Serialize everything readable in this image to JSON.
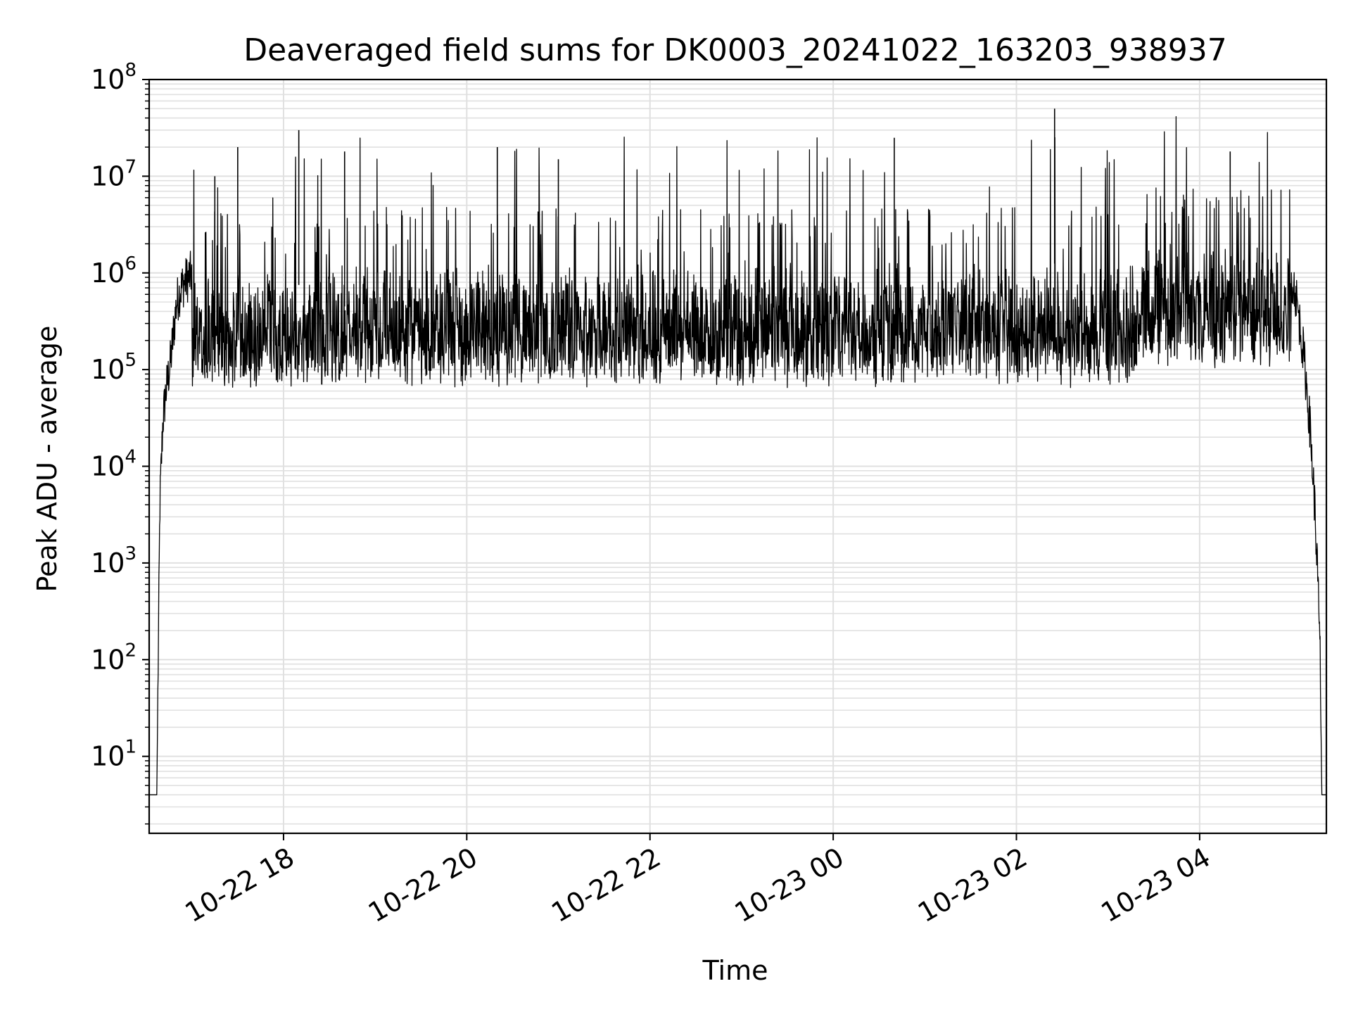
{
  "chart_data": {
    "type": "line",
    "title": "Deaveraged field sums for DK0003_20241022_163203_938937",
    "xlabel": "Time",
    "ylabel": "Peak ADU - average",
    "yscale": "log",
    "ylim": [
      1.6,
      100000000
    ],
    "xlim": [
      "2024-10-22 16:32",
      "2024-10-23 05:23"
    ],
    "grid": true,
    "legend": "none",
    "line_color": "#000000",
    "grid_color": "#e0e0e0",
    "x_ticks": [
      {
        "value": "2024-10-22 18:00",
        "label": "10-22 18"
      },
      {
        "value": "2024-10-22 20:00",
        "label": "10-22 20"
      },
      {
        "value": "2024-10-22 22:00",
        "label": "10-22 22"
      },
      {
        "value": "2024-10-23 00:00",
        "label": "10-23 00"
      },
      {
        "value": "2024-10-23 02:00",
        "label": "10-23 02"
      },
      {
        "value": "2024-10-23 04:00",
        "label": "10-23 04"
      }
    ],
    "y_ticks": [
      {
        "value": 10,
        "base": "10",
        "exp": "1"
      },
      {
        "value": 100,
        "base": "10",
        "exp": "2"
      },
      {
        "value": 1000,
        "base": "10",
        "exp": "3"
      },
      {
        "value": 10000,
        "base": "10",
        "exp": "4"
      },
      {
        "value": 100000,
        "base": "10",
        "exp": "5"
      },
      {
        "value": 1000000,
        "base": "10",
        "exp": "6"
      },
      {
        "value": 10000000,
        "base": "10",
        "exp": "7"
      },
      {
        "value": 100000000,
        "base": "10",
        "exp": "8"
      }
    ],
    "series": [
      {
        "x": [
          "2024-10-22 16:32",
          "2024-10-22 16:37",
          "2024-10-22 16:39",
          "2024-10-22 16:41",
          "2024-10-22 16:43",
          "2024-10-22 16:46",
          "2024-10-22 16:48",
          "2024-10-22 16:50",
          "2024-10-22 16:53",
          "2024-10-22 16:55",
          "2024-10-22 16:58",
          "2024-10-22 17:00",
          "2024-10-22 17:05",
          "2024-10-22 17:10",
          "2024-10-22 17:15",
          "2024-10-22 17:20",
          "2024-10-22 17:30",
          "2024-10-22 17:45",
          "2024-10-22 18:00",
          "2024-10-22 18:10",
          "2024-10-22 18:20",
          "2024-10-22 18:40",
          "2024-10-22 19:00",
          "2024-10-22 19:30",
          "2024-10-22 20:00",
          "2024-10-22 20:20",
          "2024-10-22 20:40",
          "2024-10-22 21:00",
          "2024-10-22 21:30",
          "2024-10-22 22:00",
          "2024-10-22 22:30",
          "2024-10-22 23:00",
          "2024-10-22 23:30",
          "2024-10-23 00:00",
          "2024-10-23 00:40",
          "2024-10-23 01:00",
          "2024-10-23 01:30",
          "2024-10-23 02:00",
          "2024-10-23 02:25",
          "2024-10-23 02:45",
          "2024-10-23 03:00",
          "2024-10-23 03:30",
          "2024-10-23 04:00",
          "2024-10-23 04:20",
          "2024-10-23 04:40",
          "2024-10-23 04:55",
          "2024-10-23 05:03",
          "2024-10-23 05:08",
          "2024-10-23 05:12",
          "2024-10-23 05:15",
          "2024-10-23 05:17",
          "2024-10-23 05:19",
          "2024-10-23 05:20",
          "2024-10-23 05:21",
          "2024-10-23 05:23"
        ],
        "values": [
          4,
          4,
          4000,
          30000,
          60000,
          120000,
          250000,
          500000,
          700000,
          800000,
          900000,
          1000000,
          3000000,
          900000,
          10000000,
          800000,
          20000000,
          700000,
          900000,
          30000000,
          700000,
          18000000,
          800000,
          900000,
          1000000,
          20000000,
          900000,
          15000000,
          900000,
          1000000,
          1100000,
          1000000,
          1200000,
          1100000,
          25000000,
          1000000,
          1200000,
          1300000,
          50000000,
          1300000,
          1200000,
          1500000,
          1500000,
          18000000,
          1600000,
          2000000,
          600000,
          150000,
          30000,
          5000,
          1000,
          100,
          4,
          4,
          4
        ]
      }
    ]
  }
}
